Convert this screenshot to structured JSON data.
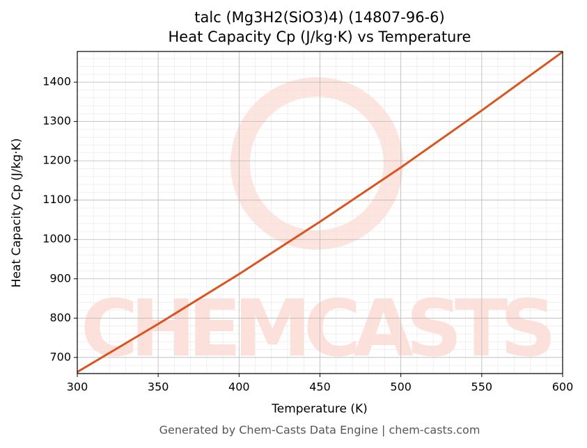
{
  "chart_data": {
    "type": "line",
    "title": "talc (Mg3H2(SiO3)4) (14807-96-6)",
    "subtitle": "Heat Capacity Cp (J/kg·K) vs Temperature",
    "x_label": "Temperature (K)",
    "y_label": "Heat Capacity Cp (J/kg·K)",
    "watermark": "CHEMCASTS",
    "footer": "Generated by Chem-Casts Data Engine | chem-casts.com",
    "x": [
      300,
      350,
      400,
      450,
      500,
      550,
      600
    ],
    "series": [
      {
        "name": "Cp",
        "color": "#d9541f",
        "values": [
          663,
          785,
          912,
          1045,
          1183,
          1328,
          1477
        ]
      }
    ],
    "xlim": [
      300,
      600
    ],
    "xticks": [
      300,
      350,
      400,
      450,
      500,
      550,
      600
    ],
    "ylim": [
      659,
      1478
    ],
    "yticks": [
      700,
      800,
      900,
      1000,
      1100,
      1200,
      1300,
      1400
    ],
    "grid": true,
    "minor_grid": true
  }
}
